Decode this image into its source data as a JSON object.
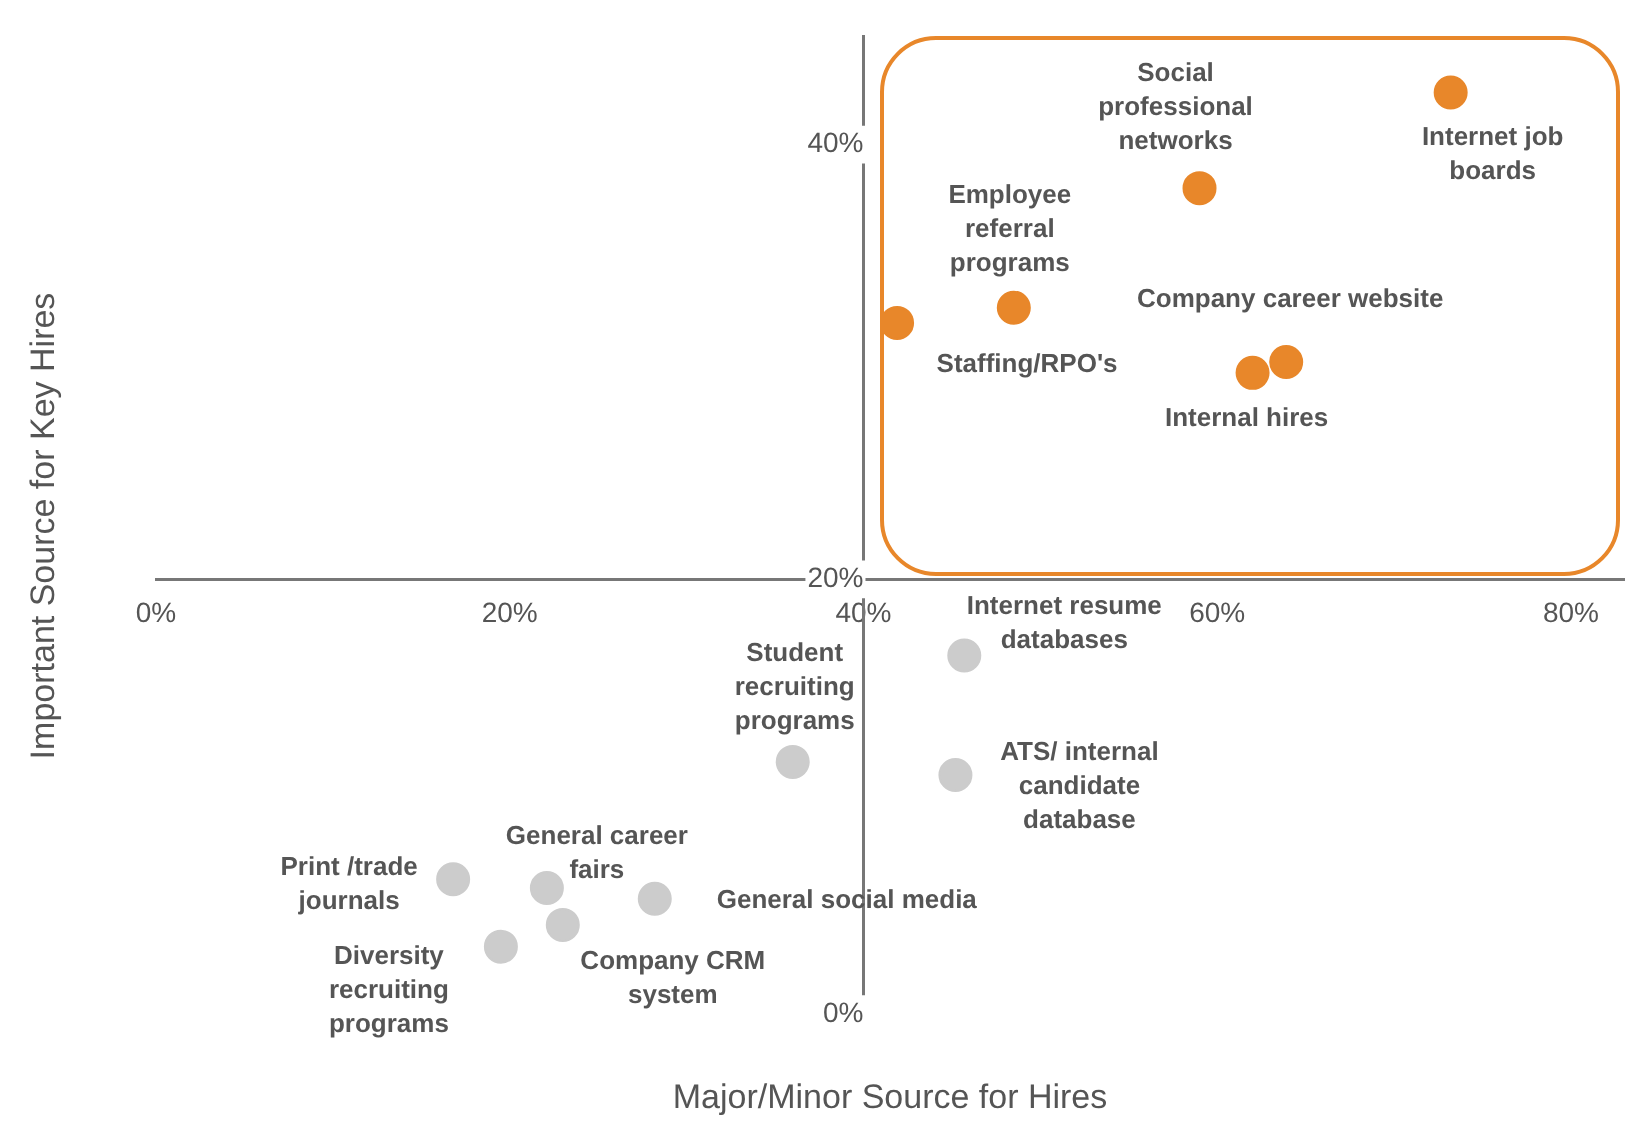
{
  "chart_data": {
    "type": "scatter",
    "xlabel": "Major/Minor Source for Hires",
    "ylabel": "Important Source for Key Hires",
    "xlim": [
      0,
      83
    ],
    "ylim": [
      0,
      45
    ],
    "xticks": [
      {
        "value": 0,
        "label": "0%"
      },
      {
        "value": 20,
        "label": "20%"
      },
      {
        "value": 40,
        "label": "40%"
      },
      {
        "value": 60,
        "label": "60%"
      },
      {
        "value": 80,
        "label": "80%"
      }
    ],
    "yticks": [
      {
        "value": 0,
        "label": "0%"
      },
      {
        "value": 20,
        "label": "20%"
      },
      {
        "value": 40,
        "label": "40%"
      }
    ],
    "grid": false,
    "legend": false,
    "marker": "circle",
    "series": [
      {
        "color": "#e8872a",
        "x": [
          73.2,
          59.0,
          48.5,
          41.9,
          63.9,
          62.0
        ],
        "values": [
          42.4,
          38.0,
          32.5,
          31.8,
          30.0,
          29.5
        ]
      },
      {
        "color": "#cccccc",
        "x": [
          45.7,
          36.0,
          45.2,
          16.8,
          22.1,
          28.2,
          19.5,
          23.0
        ],
        "values": [
          16.5,
          11.6,
          11.0,
          6.2,
          5.8,
          5.3,
          3.1,
          4.1
        ]
      }
    ],
    "annotations": [
      {
        "text": "Internet job boards",
        "x": 73.2,
        "y": 42.4
      },
      {
        "text": "Social professional networks",
        "x": 59.0,
        "y": 38.0
      },
      {
        "text": "Employee referral programs",
        "x": 48.5,
        "y": 32.5
      },
      {
        "text": "Staffing/RPO's",
        "x": 41.9,
        "y": 31.8
      },
      {
        "text": "Company career website",
        "x": 63.9,
        "y": 30.0
      },
      {
        "text": "Internal hires",
        "x": 62.0,
        "y": 29.5
      },
      {
        "text": "Internet resume databases",
        "x": 45.7,
        "y": 16.5
      },
      {
        "text": "Student recruiting programs",
        "x": 36.0,
        "y": 11.6
      },
      {
        "text": "ATS/ internal candidate database",
        "x": 45.2,
        "y": 11.0
      },
      {
        "text": "Print /trade journals",
        "x": 16.8,
        "y": 6.2
      },
      {
        "text": "General career fairs",
        "x": 22.1,
        "y": 5.8
      },
      {
        "text": "General social media",
        "x": 28.2,
        "y": 5.3
      },
      {
        "text": "Diversity recruiting programs",
        "x": 19.5,
        "y": 3.1
      },
      {
        "text": "Company CRM system",
        "x": 23.0,
        "y": 4.1
      }
    ]
  }
}
